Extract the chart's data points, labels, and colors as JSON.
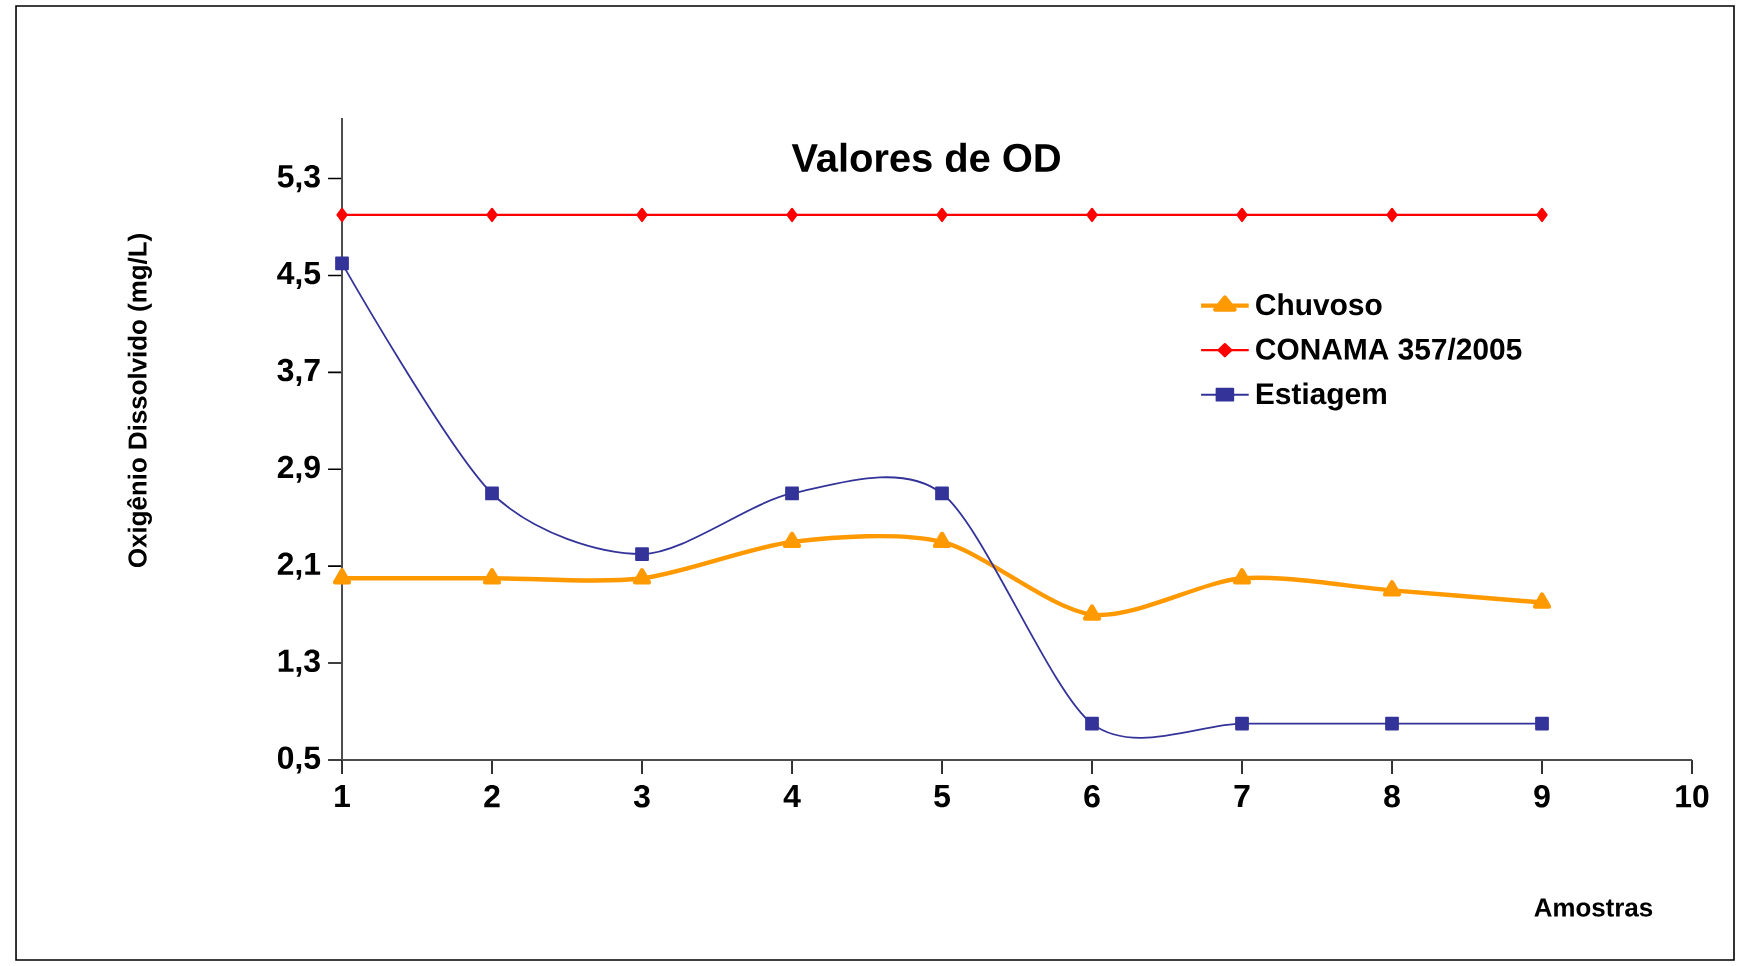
{
  "chart_data": {
    "type": "line",
    "title": "Valores de OD",
    "xlabel": "Amostras",
    "ylabel": "Oxigênio Dissolvido (mg/L)",
    "x": [
      1,
      2,
      3,
      4,
      5,
      6,
      7,
      8,
      9
    ],
    "series": [
      {
        "name": "Chuvoso",
        "color": "#ff9900",
        "marker": "triangle",
        "values": [
          2.0,
          2.0,
          2.0,
          2.3,
          2.3,
          1.7,
          2.0,
          1.9,
          1.8
        ]
      },
      {
        "name": "CONAMA 357/2005",
        "color": "#ff0000",
        "marker": "diamond",
        "values": [
          5.0,
          5.0,
          5.0,
          5.0,
          5.0,
          5.0,
          5.0,
          5.0,
          5.0
        ]
      },
      {
        "name": "Estiagem",
        "color": "#333399",
        "marker": "square",
        "values": [
          4.6,
          2.7,
          2.2,
          2.7,
          2.7,
          0.8,
          0.8,
          0.8,
          0.8
        ]
      }
    ],
    "xlim": [
      1,
      10
    ],
    "xticks": [
      1,
      2,
      3,
      4,
      5,
      6,
      7,
      8,
      9,
      10
    ],
    "ylim": [
      0.5,
      5.8
    ],
    "yticks": [
      {
        "value": 0.5,
        "label": "0,5"
      },
      {
        "value": 1.3,
        "label": "1,3"
      },
      {
        "value": 2.1,
        "label": "2,1"
      },
      {
        "value": 2.9,
        "label": "2,9"
      },
      {
        "value": 3.7,
        "label": "3,7"
      },
      {
        "value": 4.5,
        "label": "4,5"
      },
      {
        "value": 5.3,
        "label": "5,3"
      }
    ],
    "grid": false,
    "legend": "right",
    "line_style": "solid"
  }
}
